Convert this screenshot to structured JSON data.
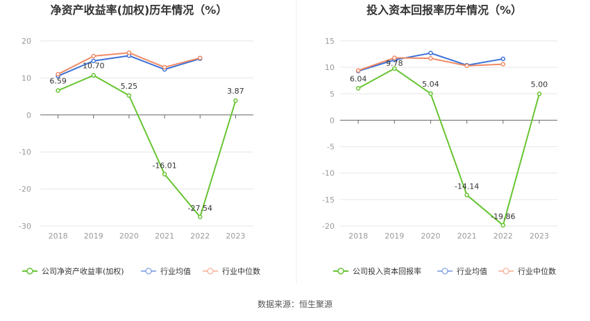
{
  "source_label": "数据来源：恒生聚源",
  "chart_data": [
    {
      "type": "line",
      "title": "净资产收益率(加权)历年情况（%）",
      "categories": [
        "2018",
        "2019",
        "2020",
        "2021",
        "2022",
        "2023"
      ],
      "ylim": [
        -30,
        20
      ],
      "yticks": [
        20,
        10,
        0,
        -10,
        -20,
        -30
      ],
      "grid": true,
      "legend_position": "bottom",
      "series": [
        {
          "name": "公司净资产收益率(加权)",
          "color": "#66c430",
          "labeled": true,
          "values": [
            6.59,
            10.7,
            5.25,
            -16.01,
            -27.54,
            3.87
          ],
          "labels": [
            "6.59",
            "10.70",
            "5.25",
            "-16.01",
            "-27.54",
            "3.87"
          ]
        },
        {
          "name": "行业均值",
          "color": "#3b6fd6",
          "labeled": false,
          "values": [
            10.5,
            14.6,
            16.0,
            12.3,
            15.2,
            null
          ]
        },
        {
          "name": "行业中位数",
          "color": "#f08a65",
          "labeled": false,
          "values": [
            11.0,
            15.9,
            16.8,
            12.9,
            15.4,
            null
          ]
        }
      ]
    },
    {
      "type": "line",
      "title": "投入资本回报率历年情况（%）",
      "categories": [
        "2018",
        "2019",
        "2020",
        "2021",
        "2022",
        "2023"
      ],
      "ylim": [
        -20,
        15
      ],
      "yticks": [
        15,
        10,
        5,
        0,
        -5,
        -10,
        -15,
        -20
      ],
      "grid": true,
      "legend_position": "bottom",
      "series": [
        {
          "name": "公司投入资本回报率",
          "color": "#66c430",
          "labeled": true,
          "values": [
            6.04,
            9.78,
            5.04,
            -14.14,
            -19.86,
            5.0
          ],
          "labels": [
            "6.04",
            "9.78",
            "5.04",
            "-14.14",
            "-19.86",
            "5.00"
          ]
        },
        {
          "name": "行业均值",
          "color": "#3b6fd6",
          "labeled": false,
          "values": [
            9.3,
            11.4,
            12.7,
            10.4,
            11.6,
            null
          ]
        },
        {
          "name": "行业中位数",
          "color": "#f08a65",
          "labeled": false,
          "values": [
            9.4,
            11.8,
            11.7,
            10.3,
            10.6,
            null
          ]
        }
      ]
    }
  ]
}
